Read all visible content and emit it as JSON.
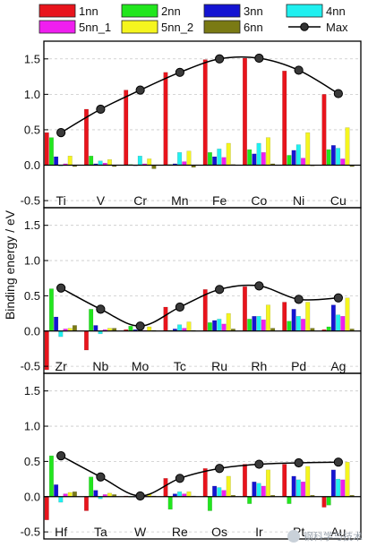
{
  "chart_data": {
    "type": "bar",
    "ylabel": "Binding energy / eV",
    "legend": {
      "placement": "top",
      "entries": [
        {
          "name": "1nn",
          "color": "#e8141c"
        },
        {
          "name": "2nn",
          "color": "#22e61e"
        },
        {
          "name": "3nn",
          "color": "#1414d2"
        },
        {
          "name": "4nn",
          "color": "#20f0f0"
        },
        {
          "name": "5nn_1",
          "color": "#f01ef0"
        },
        {
          "name": "5nn_2",
          "color": "#f5f51e"
        },
        {
          "name": "6nn",
          "color": "#7a7a14"
        },
        {
          "name": "Max",
          "color": "#000000"
        }
      ]
    },
    "panels": [
      {
        "categories": [
          "Ti",
          "V",
          "Cr",
          "Mn",
          "Fe",
          "Co",
          "Ni",
          "Cu"
        ],
        "ylim": [
          -0.6,
          1.75
        ],
        "yticks": [
          -0.5,
          0.0,
          0.5,
          1.0,
          1.5
        ],
        "series": {
          "1nn": [
            0.46,
            0.79,
            1.06,
            1.31,
            1.49,
            1.51,
            1.33,
            1.0
          ],
          "2nn": [
            0.39,
            0.13,
            0.01,
            0.01,
            0.18,
            0.22,
            0.14,
            0.22
          ],
          "3nn": [
            0.12,
            0.02,
            0.0,
            0.02,
            0.12,
            0.16,
            0.21,
            0.28
          ],
          "4nn": [
            -0.01,
            0.06,
            0.13,
            0.18,
            0.23,
            0.31,
            0.29,
            0.24
          ],
          "5nn_1": [
            0.02,
            0.03,
            0.02,
            0.05,
            0.11,
            0.18,
            0.1,
            0.09
          ],
          "5nn_2": [
            0.13,
            0.08,
            0.09,
            0.2,
            0.31,
            0.39,
            0.46,
            0.53
          ],
          "6nn": [
            -0.02,
            -0.02,
            -0.05,
            -0.03,
            0.01,
            0.02,
            -0.01,
            -0.02
          ]
        },
        "max": [
          0.46,
          0.79,
          1.06,
          1.31,
          1.5,
          1.51,
          1.34,
          1.01
        ]
      },
      {
        "categories": [
          "Zr",
          "Nb",
          "Mo",
          "Tc",
          "Ru",
          "Rh",
          "Pd",
          "Ag"
        ],
        "ylim": [
          -0.6,
          1.75
        ],
        "yticks": [
          -0.5,
          0.0,
          0.5,
          1.0,
          1.5
        ],
        "series": {
          "1nn": [
            -0.55,
            -0.27,
            0.02,
            0.34,
            0.59,
            0.63,
            0.41,
            0.02
          ],
          "2nn": [
            0.6,
            0.31,
            0.07,
            0.01,
            0.12,
            0.17,
            0.14,
            0.06
          ],
          "3nn": [
            0.2,
            0.08,
            0.02,
            0.03,
            0.15,
            0.21,
            0.31,
            0.37
          ],
          "4nn": [
            -0.08,
            -0.04,
            0.04,
            0.09,
            0.17,
            0.21,
            0.21,
            0.23
          ],
          "5nn_1": [
            0.03,
            0.02,
            0.01,
            0.04,
            0.1,
            0.16,
            0.17,
            0.21
          ],
          "5nn_2": [
            0.04,
            0.04,
            0.06,
            0.13,
            0.25,
            0.37,
            0.41,
            0.47
          ],
          "6nn": [
            0.08,
            0.04,
            0.01,
            0.01,
            0.03,
            0.04,
            0.04,
            0.03
          ]
        },
        "max": [
          0.61,
          0.31,
          0.07,
          0.34,
          0.59,
          0.64,
          0.45,
          0.47
        ]
      },
      {
        "categories": [
          "Hf",
          "Ta",
          "W",
          "Re",
          "Os",
          "Ir",
          "Pt",
          "Au"
        ],
        "ylim": [
          -0.6,
          1.75
        ],
        "yticks": [
          -0.5,
          0.0,
          0.5,
          1.0,
          1.5
        ],
        "series": {
          "1nn": [
            -0.33,
            -0.2,
            0.01,
            0.26,
            0.4,
            0.46,
            0.46,
            -0.15
          ],
          "2nn": [
            0.58,
            0.28,
            0.0,
            -0.18,
            -0.2,
            -0.1,
            -0.1,
            -0.12
          ],
          "3nn": [
            0.17,
            0.09,
            0.0,
            0.04,
            0.15,
            0.21,
            0.29,
            0.38
          ],
          "4nn": [
            -0.08,
            -0.03,
            0.02,
            0.07,
            0.13,
            0.19,
            0.24,
            0.25
          ],
          "5nn_1": [
            0.04,
            0.03,
            0.01,
            0.04,
            0.09,
            0.15,
            0.21,
            0.24
          ],
          "5nn_2": [
            0.06,
            0.05,
            0.04,
            0.07,
            0.29,
            0.38,
            0.43,
            0.49
          ],
          "6nn": [
            0.07,
            0.03,
            0.01,
            0.01,
            0.02,
            0.02,
            0.02,
            0.02
          ]
        },
        "max": [
          0.58,
          0.28,
          0.01,
          0.26,
          0.4,
          0.46,
          0.48,
          0.49
        ]
      }
    ]
  },
  "watermark": {
    "text": "钢科学与技术",
    "icon": "wechat-icon"
  }
}
